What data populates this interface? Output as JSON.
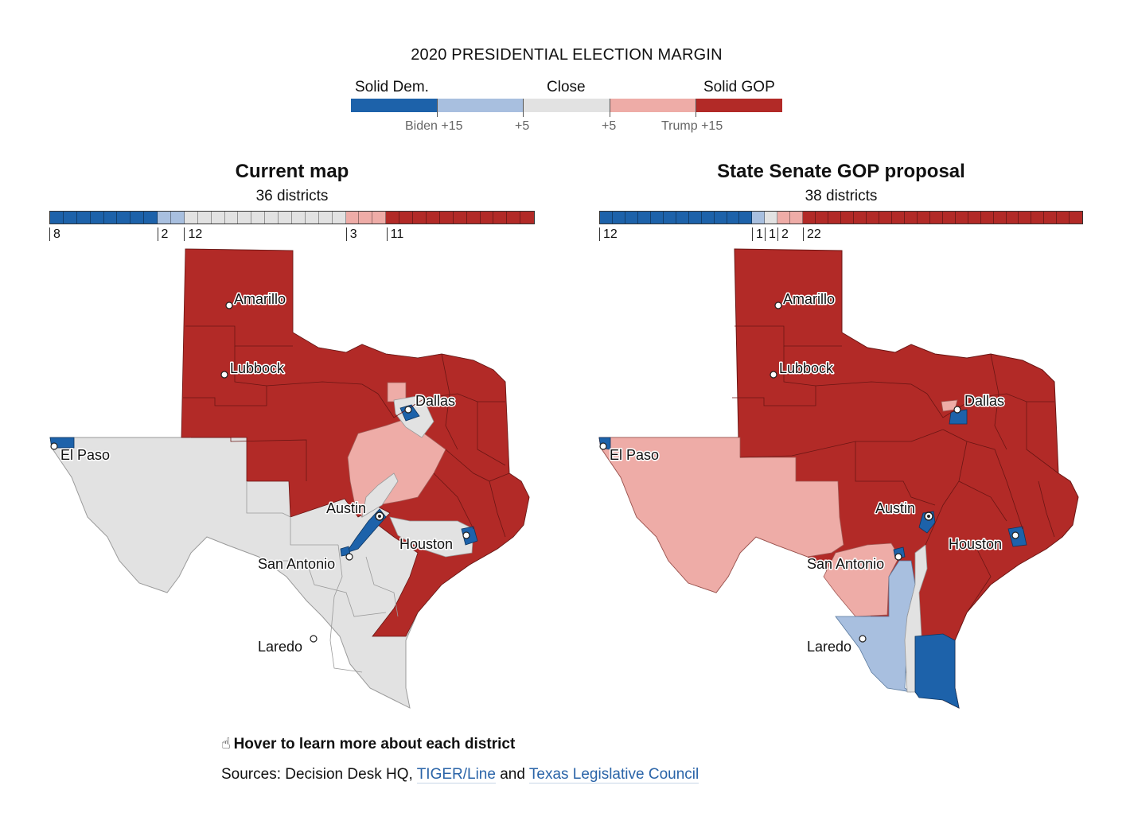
{
  "legend": {
    "title": "2020 PRESIDENTIAL ELECTION MARGIN",
    "labels": {
      "left": "Solid Dem.",
      "center": "Close",
      "right": "Solid GOP"
    },
    "ticks": [
      "Biden +15",
      "+5",
      "+5",
      "Trump +15"
    ],
    "colors": {
      "solid_dem": "#1d62aa",
      "lean_dem": "#a8bfdf",
      "close": "#e2e2e2",
      "lean_gop": "#eeaca7",
      "solid_gop": "#b22a27"
    }
  },
  "panels": [
    {
      "title": "Current map",
      "subtitle": "36 districts",
      "counts": [
        {
          "category": "solid_dem",
          "value": 8
        },
        {
          "category": "lean_dem",
          "value": 2
        },
        {
          "category": "close",
          "value": 12
        },
        {
          "category": "lean_gop",
          "value": 3
        },
        {
          "category": "solid_gop",
          "value": 11
        }
      ]
    },
    {
      "title": "State Senate GOP proposal",
      "subtitle": "38 districts",
      "counts": [
        {
          "category": "solid_dem",
          "value": 12
        },
        {
          "category": "lean_dem",
          "value": 1
        },
        {
          "category": "close",
          "value": 1
        },
        {
          "category": "lean_gop",
          "value": 2
        },
        {
          "category": "solid_gop",
          "value": 22
        }
      ]
    }
  ],
  "cities": [
    "Amarillo",
    "Lubbock",
    "Dallas",
    "El Paso",
    "Austin",
    "Houston",
    "San Antonio",
    "Laredo"
  ],
  "footer": {
    "hover_note": "Hover to learn more about each district",
    "sources_prefix": "Sources: Decision Desk HQ, ",
    "source_link_1": "TIGER/Line",
    "sources_and": " and ",
    "source_link_2": "Texas Legislative Council"
  }
}
